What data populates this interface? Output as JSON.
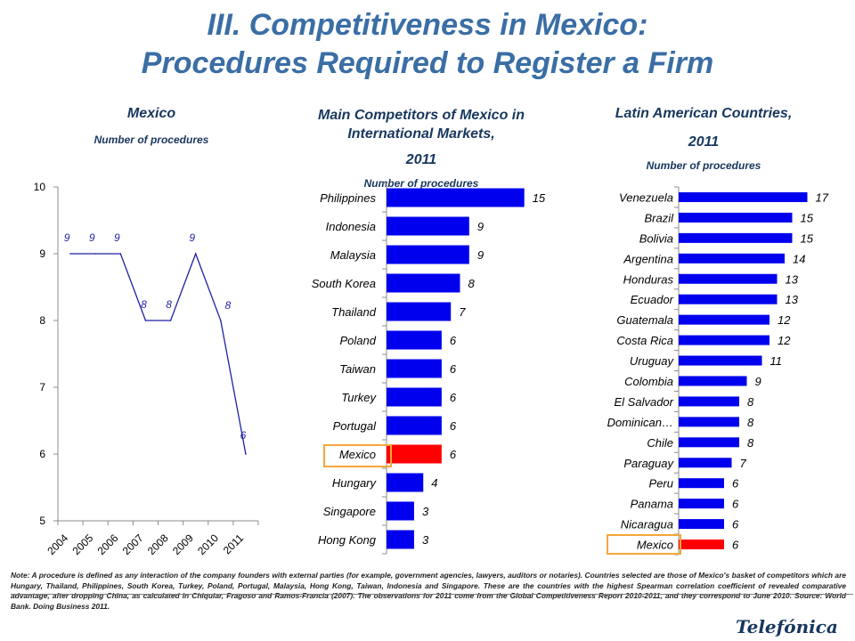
{
  "title_line1": "III. Competitiveness in Mexico:",
  "title_line2": "Procedures Required to Register a Firm",
  "colors": {
    "bar": "#0000ee",
    "highlight_bar": "#ff0000",
    "line": "#1f1fa8",
    "highlight_box": "#f3a73b"
  },
  "chart_data": [
    {
      "type": "line",
      "title": "Mexico",
      "subtitle": "Number of procedures",
      "x": [
        "2004",
        "2005",
        "2006",
        "2007",
        "2008",
        "2009",
        "2010",
        "2011"
      ],
      "values": [
        9,
        9,
        9,
        8,
        8,
        9,
        8,
        6
      ],
      "data_labels": [
        "9",
        "9",
        "9",
        "8",
        "8",
        "9",
        "8",
        "6"
      ],
      "y_ticks": [
        "5",
        "6",
        "7",
        "8",
        "9",
        "10"
      ],
      "ylim": [
        5,
        10
      ],
      "grid": false
    },
    {
      "type": "bar",
      "orientation": "horizontal",
      "title": "Main Competitors of Mexico in International Markets,",
      "title_year": "2011",
      "subtitle": "Number of procedures",
      "categories": [
        "Philippines",
        "Indonesia",
        "Malaysia",
        "South Korea",
        "Thailand",
        "Poland",
        "Taiwan",
        "Turkey",
        "Portugal",
        "Mexico",
        "Hungary",
        "Singapore",
        "Hong Kong"
      ],
      "values": [
        15,
        9,
        9,
        8,
        7,
        6,
        6,
        6,
        6,
        6,
        4,
        3,
        3
      ],
      "highlight": "Mexico",
      "xlim": [
        0,
        16
      ]
    },
    {
      "type": "bar",
      "orientation": "horizontal",
      "title": "Latin American Countries,",
      "title_year": "2011",
      "subtitle": "Number of procedures",
      "categories": [
        "Venezuela",
        "Brazil",
        "Bolivia",
        "Argentina",
        "Honduras",
        "Ecuador",
        "Guatemala",
        "Costa Rica",
        "Uruguay",
        "Colombia",
        "El Salvador",
        "Dominican…",
        "Chile",
        "Paraguay",
        "Peru",
        "Panama",
        "Nicaragua",
        "Mexico"
      ],
      "values": [
        17,
        15,
        15,
        14,
        13,
        13,
        12,
        12,
        11,
        9,
        8,
        8,
        8,
        7,
        6,
        6,
        6,
        6
      ],
      "highlight": "Mexico",
      "xlim": [
        0,
        18
      ]
    }
  ],
  "note": "Note: A procedure is defined as any interaction of the company founders with external parties (for example, government agencies, lawyers, auditors or notaries). Countries selected are those of Mexico's basket of competitors which are Hungary, Thailand, Philippines, South Korea, Turkey, Poland, Portugal, Malaysia, Hong Kong, Taiwan, Indonesia and Singapore. These are the countries with the highest Spearman correlation coefficient of revealed comparative advantage, after dropping China, as calculated in Chiquiar, Fragoso and Ramos-Francia (2007). The observations for 2011 come from the Global Competitiveness Report 2010-2011, and they correspond to June 2010. Source: World Bank. Doing Business 2011.",
  "logo_text": "Telefónica"
}
